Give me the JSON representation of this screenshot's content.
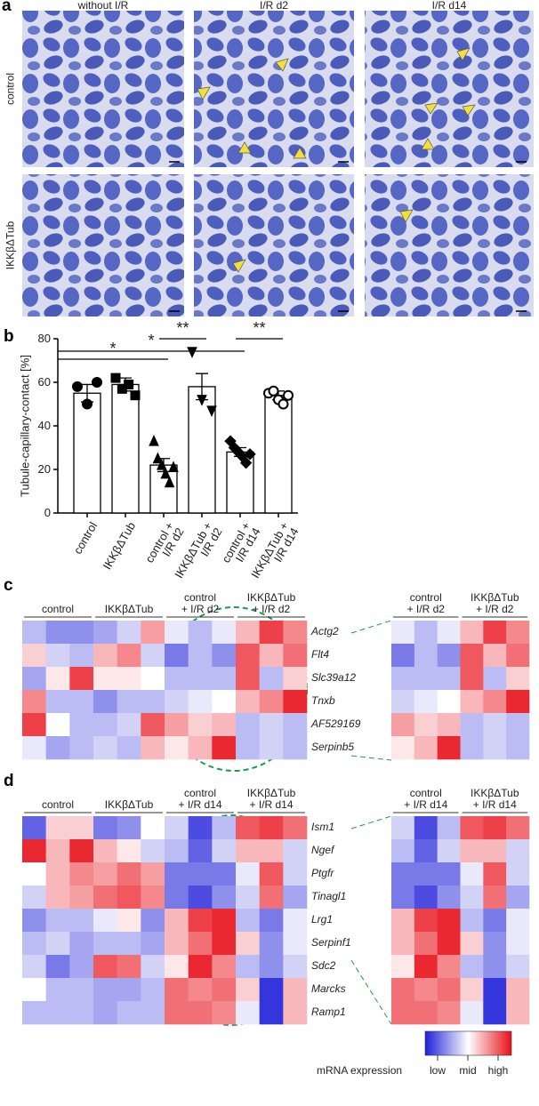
{
  "panel_labels": [
    "a",
    "b",
    "c",
    "d"
  ],
  "micrographs": {
    "columns": [
      "without I/R",
      "I/R d2",
      "I/R d14"
    ],
    "rows": [
      "control",
      "IKKβΔTub"
    ]
  },
  "chart_data": [
    {
      "type": "bar",
      "y_label": "Tubule-capillary-contact [%]",
      "categories": [
        "control",
        "IKKβΔTub",
        "control +\nI/R d2",
        "IKKβΔTub +\nI/R d2",
        "control +\nI/R d14",
        "IKKβΔTub +\nI/R d14"
      ],
      "values": [
        55,
        59,
        22,
        58,
        28,
        54
      ],
      "errors": [
        4,
        3,
        3,
        6,
        2,
        2
      ],
      "points": [
        [
          58,
          50,
          60
        ],
        [
          62,
          57,
          59,
          54
        ],
        [
          33,
          25,
          22,
          18,
          14,
          21
        ],
        [
          74,
          52,
          47
        ],
        [
          33,
          30,
          28,
          26,
          23,
          27
        ],
        [
          55,
          56,
          52,
          50,
          54
        ]
      ],
      "markers": [
        "circle",
        "square",
        "triangle-up",
        "triangle-down",
        "diamond",
        "open-circle"
      ],
      "color": "#000000",
      "ylim": [
        0,
        80
      ],
      "yticks": [
        0,
        20,
        40,
        60,
        80
      ],
      "annotations": [
        "*",
        "*",
        "**",
        "**"
      ]
    },
    {
      "type": "heatmap",
      "groups": [
        "control",
        "IKKβΔTub",
        "control\n+ I/R d2",
        "IKKβΔTub\n+ I/R d2"
      ],
      "rows": [
        "Actg2",
        "Flt4",
        "Slc39a12",
        "Tnxb",
        "AF529169",
        "Serpinb5"
      ],
      "values": [
        [
          -0.3,
          -0.5,
          -0.5,
          -0.4,
          -0.2,
          0.4,
          -0.1,
          -0.3,
          -0.1,
          0.3,
          0.8,
          0.5
        ],
        [
          0.2,
          -0.2,
          -0.3,
          0.3,
          0.5,
          -0.2,
          -0.6,
          -0.3,
          -0.5,
          0.7,
          0.3,
          0.6
        ],
        [
          -0.4,
          0.1,
          0.8,
          0.1,
          0.1,
          0.0,
          -0.3,
          -0.3,
          -0.3,
          0.7,
          -0.3,
          0.2
        ],
        [
          0.5,
          -0.3,
          -0.3,
          -0.5,
          -0.3,
          -0.3,
          -0.2,
          -0.1,
          0.0,
          0.3,
          0.5,
          0.9
        ],
        [
          0.8,
          0.0,
          -0.3,
          -0.3,
          -0.2,
          0.7,
          0.4,
          0.2,
          0.3,
          -0.3,
          -0.2,
          -0.3
        ],
        [
          -0.1,
          -0.4,
          -0.3,
          -0.2,
          -0.3,
          0.3,
          0.1,
          0.3,
          0.9,
          -0.3,
          -0.2,
          -0.3
        ]
      ]
    },
    {
      "type": "heatmap",
      "groups": [
        "control",
        "IKKβΔTub",
        "control\n+ I/R d14",
        "IKKβΔTub\n+ I/R d14"
      ],
      "rows": [
        "Ism1",
        "Ngef",
        "Ptgfr",
        "Tinagl1",
        "Lrg1",
        "Serpinf1",
        "Sdc2",
        "Marcks",
        "Ramp1"
      ],
      "values": [
        [
          -0.7,
          0.2,
          0.2,
          -0.6,
          -0.5,
          0.0,
          -0.2,
          -0.8,
          -0.3,
          0.7,
          0.8,
          0.6
        ],
        [
          0.9,
          0.3,
          0.9,
          0.3,
          0.1,
          -0.2,
          -0.3,
          -0.7,
          -0.2,
          0.3,
          0.3,
          -0.2
        ],
        [
          0.0,
          0.3,
          0.5,
          0.4,
          0.6,
          0.4,
          -0.6,
          -0.6,
          -0.6,
          -0.1,
          0.7,
          -0.2
        ],
        [
          -0.2,
          0.3,
          0.4,
          0.6,
          0.7,
          0.5,
          -0.6,
          -0.8,
          -0.5,
          -0.2,
          0.6,
          -0.4
        ],
        [
          -0.5,
          -0.3,
          -0.3,
          -0.1,
          0.1,
          -0.5,
          0.3,
          0.8,
          0.9,
          -0.3,
          -0.6,
          -0.1
        ],
        [
          -0.3,
          -0.2,
          -0.4,
          -0.3,
          -0.3,
          -0.4,
          0.3,
          0.6,
          0.9,
          0.2,
          -0.5,
          -0.1
        ],
        [
          -0.2,
          -0.6,
          -0.4,
          0.7,
          0.6,
          -0.2,
          0.1,
          0.9,
          0.5,
          -0.3,
          -0.5,
          -0.2
        ],
        [
          0.0,
          -0.3,
          -0.3,
          -0.4,
          -0.4,
          -0.3,
          0.6,
          0.5,
          0.6,
          0.2,
          -0.9,
          0.3
        ],
        [
          -0.3,
          -0.3,
          -0.3,
          -0.4,
          -0.3,
          -0.3,
          0.6,
          0.6,
          0.5,
          -0.1,
          -0.9,
          0.3
        ]
      ]
    }
  ],
  "colorbar": {
    "label": "mRNA expression",
    "ticks": [
      "low",
      "mid",
      "high"
    ],
    "colors": [
      "#1f1fd9",
      "#ffffff",
      "#e8101a"
    ]
  }
}
